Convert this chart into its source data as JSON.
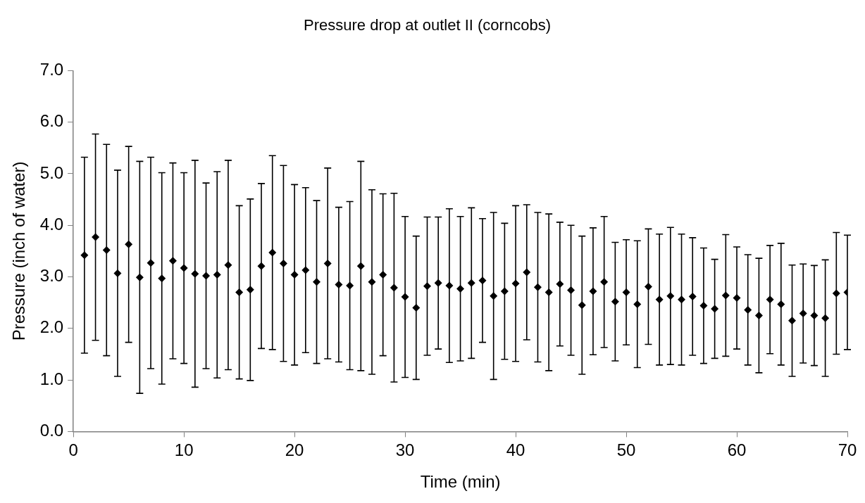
{
  "chart_data": {
    "type": "scatter",
    "title": "Pressure drop at outlet II (corncobs)",
    "xlabel": "Time (min)",
    "ylabel": "Pressure (inch of water)",
    "x": [
      1,
      2,
      3,
      4,
      5,
      6,
      7,
      8,
      9,
      10,
      11,
      12,
      13,
      14,
      15,
      16,
      17,
      18,
      19,
      20,
      21,
      22,
      23,
      24,
      25,
      26,
      27,
      28,
      29,
      30,
      31,
      32,
      33,
      34,
      35,
      36,
      37,
      38,
      39,
      40,
      41,
      42,
      43,
      44,
      45,
      46,
      47,
      48,
      49,
      50,
      51,
      52,
      53,
      54,
      55,
      56,
      57,
      58,
      59,
      60,
      61,
      62,
      63,
      64,
      65,
      66,
      67,
      68,
      69,
      70
    ],
    "series": [
      {
        "color": "#000000",
        "values": [
          3.42,
          3.77,
          3.52,
          3.07,
          3.63,
          2.99,
          3.27,
          2.97,
          3.31,
          3.17,
          3.06,
          3.02,
          3.04,
          3.23,
          2.7,
          2.75,
          3.21,
          3.47,
          3.26,
          3.04,
          3.13,
          2.9,
          3.26,
          2.85,
          2.83,
          3.21,
          2.9,
          3.04,
          2.79,
          2.61,
          2.4,
          2.82,
          2.88,
          2.83,
          2.77,
          2.88,
          2.93,
          2.63,
          2.72,
          2.87,
          3.09,
          2.8,
          2.7,
          2.86,
          2.74,
          2.45,
          2.72,
          2.9,
          2.52,
          2.7,
          2.47,
          2.81,
          2.56,
          2.63,
          2.56,
          2.62,
          2.44,
          2.38,
          2.64,
          2.59,
          2.36,
          2.25,
          2.56,
          2.47,
          2.15,
          2.29,
          2.25,
          2.2,
          2.68,
          2.7
        ],
        "errors": [
          1.9,
          2.0,
          2.05,
          2.0,
          1.9,
          2.25,
          2.05,
          2.05,
          1.9,
          1.85,
          2.2,
          1.8,
          2.0,
          2.03,
          1.68,
          1.76,
          1.6,
          1.88,
          1.9,
          1.75,
          1.6,
          1.58,
          1.85,
          1.5,
          1.63,
          2.03,
          1.79,
          1.57,
          1.83,
          1.56,
          1.39,
          1.34,
          1.28,
          1.49,
          1.4,
          1.46,
          1.2,
          1.62,
          1.32,
          1.51,
          1.31,
          1.45,
          1.52,
          1.2,
          1.26,
          1.34,
          1.23,
          1.27,
          1.15,
          1.02,
          1.23,
          1.12,
          1.27,
          1.33,
          1.27,
          1.14,
          1.12,
          0.96,
          1.18,
          0.99,
          1.07,
          1.11,
          1.05,
          1.18,
          1.08,
          0.96,
          0.97,
          1.13,
          1.18,
          1.11
        ]
      }
    ],
    "xlim": [
      0,
      70
    ],
    "xticks": [
      0,
      10,
      20,
      30,
      40,
      50,
      60,
      70
    ],
    "ylim": [
      0,
      7
    ],
    "yticks": [
      {
        "value": 0,
        "label": "0.0"
      },
      {
        "value": 1,
        "label": "1.0"
      },
      {
        "value": 2,
        "label": "2.0"
      },
      {
        "value": 3,
        "label": "3.0"
      },
      {
        "value": 4,
        "label": "4.0"
      },
      {
        "value": 5,
        "label": "5.0"
      },
      {
        "value": 6,
        "label": "6.0"
      },
      {
        "value": 7,
        "label": "7.0"
      }
    ],
    "grid": false,
    "legend": false,
    "marker": "diamond"
  }
}
